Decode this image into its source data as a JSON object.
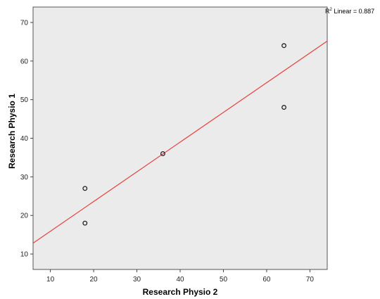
{
  "chart_data": {
    "type": "scatter",
    "xlabel": "Research Physio 2",
    "ylabel": "Research Physio 1",
    "xlim": [
      6,
      74
    ],
    "ylim": [
      6,
      74
    ],
    "xticks": [
      10,
      20,
      30,
      40,
      50,
      60,
      70
    ],
    "yticks": [
      10,
      20,
      30,
      40,
      50,
      60,
      70
    ],
    "grid": false,
    "points": [
      {
        "x": 18,
        "y": 27
      },
      {
        "x": 18,
        "y": 18
      },
      {
        "x": 36,
        "y": 36
      },
      {
        "x": 64,
        "y": 64
      },
      {
        "x": 64,
        "y": 48
      }
    ],
    "fit_line": {
      "intercept": 8.2,
      "slope": 0.77
    },
    "annotation": {
      "r_symbol": "R",
      "superscript": "2",
      "text": " Linear = 0.887"
    },
    "colors": {
      "plot_background": "#ebebeb",
      "fit_line": "#e8413c",
      "marker": "#222222"
    }
  }
}
